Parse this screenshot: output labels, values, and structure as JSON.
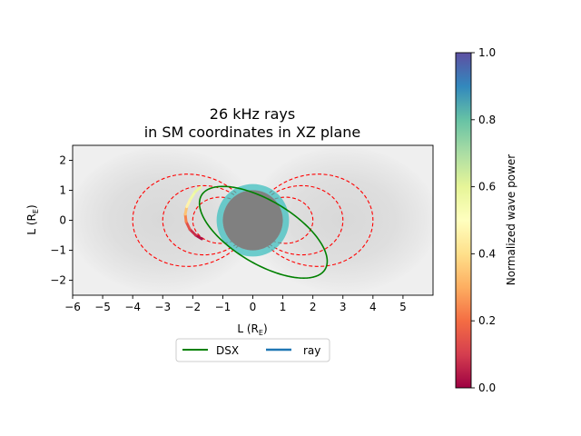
{
  "chart_data": {
    "type": "scatter",
    "title_line1": "26 kHz rays",
    "title_line2": "in SM coordinates in XZ plane",
    "xlabel": "L (R",
    "xlabel_sub": "E",
    "xlabel_end": ")",
    "ylabel": "L (R",
    "ylabel_sub": "E",
    "ylabel_end": ")",
    "xlim": [
      -6,
      6
    ],
    "ylim": [
      -2.5,
      2.5
    ],
    "xticks": [
      -6,
      -5,
      -4,
      -3,
      -2,
      -1,
      0,
      1,
      2,
      3,
      4,
      5
    ],
    "yticks": [
      -2,
      -1,
      0,
      1,
      2
    ],
    "grid": false,
    "earth_radius": 1,
    "plasmasphere_ring_radius": 1.1,
    "field_lines_L": [
      2,
      3,
      4
    ],
    "dsx_orbit": {
      "center": [
        0.35,
        -0.4
      ],
      "semi_major": 2.4,
      "semi_minor": 1.05,
      "tilt_deg": -31
    },
    "ray": {
      "points": [
        [
          -1.7,
          -0.62
        ],
        [
          -1.9,
          -0.5
        ],
        [
          -2.1,
          -0.3
        ],
        [
          -2.22,
          -0.05
        ],
        [
          -2.25,
          0.2
        ],
        [
          -2.2,
          0.45
        ],
        [
          -2.08,
          0.7
        ],
        [
          -1.92,
          0.95
        ],
        [
          -1.75,
          1.1
        ]
      ],
      "power": [
        0.0,
        0.05,
        0.1,
        0.18,
        0.28,
        0.4,
        0.52,
        0.6,
        0.56
      ]
    },
    "legend": {
      "placement": "below",
      "entries": [
        {
          "label": "DSX",
          "color": "#008000"
        },
        {
          "label": "ray",
          "color": "#1f77b4"
        }
      ]
    },
    "colorbar": {
      "label": "Normalized wave power",
      "range": [
        0,
        1
      ],
      "ticks": [
        "0.0",
        "0.2",
        "0.4",
        "0.6",
        "0.8",
        "1.0"
      ],
      "colormap": "Spectral",
      "stops": [
        "#9e0142",
        "#d53e4f",
        "#f46d43",
        "#fdae61",
        "#fee08b",
        "#ffffbf",
        "#e6f598",
        "#abdda4",
        "#66c2a5",
        "#3288bd",
        "#5e4fa2"
      ]
    },
    "colors": {
      "field_line": "#ff0000",
      "earth": "#808080",
      "plasmasphere": "#40c0c0",
      "dsx": "#008000"
    }
  }
}
